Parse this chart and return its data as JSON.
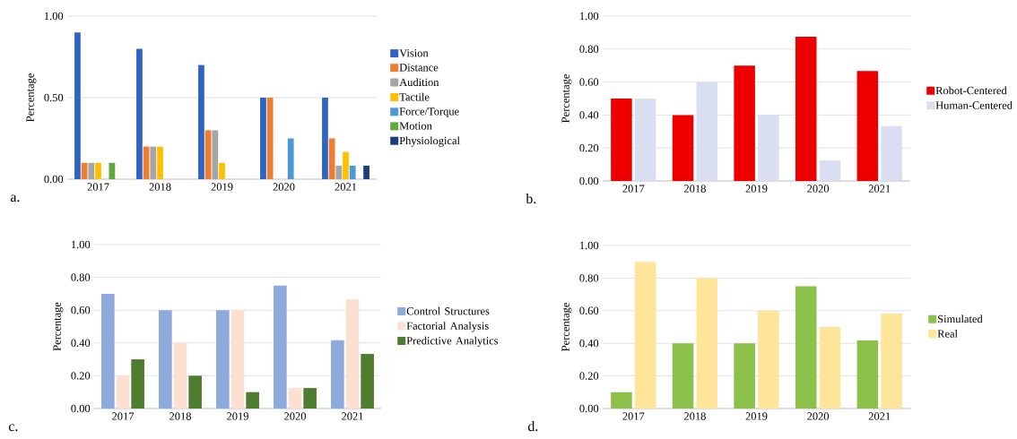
{
  "chart_data": [
    {
      "type": "bar",
      "categories": [
        "2017",
        "2018",
        "2019",
        "2020",
        "2021"
      ],
      "ylabel": "Percentage",
      "ylim": [
        0,
        1
      ],
      "yticks": [
        {
          "value": 0,
          "label": "0.00"
        },
        {
          "value": 0.5,
          "label": "0.50"
        },
        {
          "value": 1,
          "label": "1.00"
        }
      ],
      "grid": "y",
      "legend": "right",
      "annotations": [
        "a."
      ],
      "series": [
        {
          "name": "Vision",
          "color": "#2f64c4",
          "values": [
            0.9,
            0.8,
            0.7,
            0.5,
            0.5
          ]
        },
        {
          "name": "Distance",
          "color": "#ed7d31",
          "values": [
            0.1,
            0.2,
            0.3,
            0.5,
            0.25
          ]
        },
        {
          "name": "Audition",
          "color": "#a5a5a5",
          "values": [
            0.1,
            0.2,
            0.3,
            null,
            0.083
          ]
        },
        {
          "name": "Tactile",
          "color": "#ffc000",
          "values": [
            0.1,
            0.2,
            0.1,
            null,
            0.167
          ]
        },
        {
          "name": "Force/Torque",
          "color": "#4a9ad8",
          "values": [
            null,
            null,
            null,
            0.25,
            0.083
          ]
        },
        {
          "name": "Motion",
          "color": "#62a83f",
          "values": [
            0.1,
            null,
            null,
            null,
            null
          ]
        },
        {
          "name": "Physiological",
          "color": "#1c3f7c",
          "values": [
            null,
            null,
            null,
            null,
            0.083
          ]
        }
      ]
    },
    {
      "type": "bar",
      "categories": [
        "2017",
        "2018",
        "2019",
        "2020",
        "2021"
      ],
      "ylabel": "Percentage",
      "ylim": [
        0,
        1
      ],
      "yticks": [
        {
          "value": 0,
          "label": "0.00"
        },
        {
          "value": 0.2,
          "label": "0.20"
        },
        {
          "value": 0.4,
          "label": "0.40"
        },
        {
          "value": 0.6,
          "label": "0.60"
        },
        {
          "value": 0.8,
          "label": "0.80"
        },
        {
          "value": 1,
          "label": "1.00"
        }
      ],
      "grid": "y",
      "legend": "right",
      "annotations": [
        "b."
      ],
      "series": [
        {
          "name": "Robot-Centered",
          "color": "#ee0000",
          "values": [
            0.5,
            0.4,
            0.7,
            0.875,
            0.667
          ]
        },
        {
          "name": "Human-Centered",
          "color": "#d9dff0",
          "values": [
            0.5,
            0.6,
            0.4,
            0.125,
            0.333
          ]
        }
      ]
    },
    {
      "type": "bar",
      "categories": [
        "2017",
        "2018",
        "2019",
        "2020",
        "2021"
      ],
      "ylabel": "Percentage",
      "ylim": [
        0,
        1
      ],
      "yticks": [
        {
          "value": 0,
          "label": "0.00"
        },
        {
          "value": 0.2,
          "label": "0.20"
        },
        {
          "value": 0.4,
          "label": "0.40"
        },
        {
          "value": 0.6,
          "label": "0.60"
        },
        {
          "value": 0.8,
          "label": "0.80"
        },
        {
          "value": 1,
          "label": "1.00"
        }
      ],
      "grid": "y",
      "legend": "right",
      "annotations": [
        "c."
      ],
      "series": [
        {
          "name": "Control Structures",
          "color": "#8eaadc",
          "values": [
            0.7,
            0.6,
            0.6,
            0.75,
            0.417
          ]
        },
        {
          "name": "Factorial Analysis",
          "color": "#fde0d2",
          "values": [
            0.2,
            0.4,
            0.6,
            0.125,
            0.667
          ]
        },
        {
          "name": "Predictive Analytics",
          "color": "#4e7d2f",
          "values": [
            0.3,
            0.2,
            0.1,
            0.125,
            0.333
          ]
        }
      ]
    },
    {
      "type": "bar",
      "categories": [
        "2017",
        "2018",
        "2019",
        "2020",
        "2021"
      ],
      "ylabel": "Percentage",
      "ylim": [
        0,
        1
      ],
      "yticks": [
        {
          "value": 0,
          "label": "0.00"
        },
        {
          "value": 0.2,
          "label": "0.20"
        },
        {
          "value": 0.4,
          "label": "0.40"
        },
        {
          "value": 0.6,
          "label": "0.60"
        },
        {
          "value": 0.8,
          "label": "0.80"
        },
        {
          "value": 1,
          "label": "1.00"
        }
      ],
      "grid": "y",
      "legend": "right",
      "annotations": [
        "d."
      ],
      "series": [
        {
          "name": "Simulated",
          "color": "#8bc14b",
          "values": [
            0.1,
            0.4,
            0.4,
            0.75,
            0.417
          ]
        },
        {
          "name": "Real",
          "color": "#ffe49a",
          "values": [
            0.9,
            0.8,
            0.6,
            0.5,
            0.583
          ]
        }
      ]
    }
  ]
}
